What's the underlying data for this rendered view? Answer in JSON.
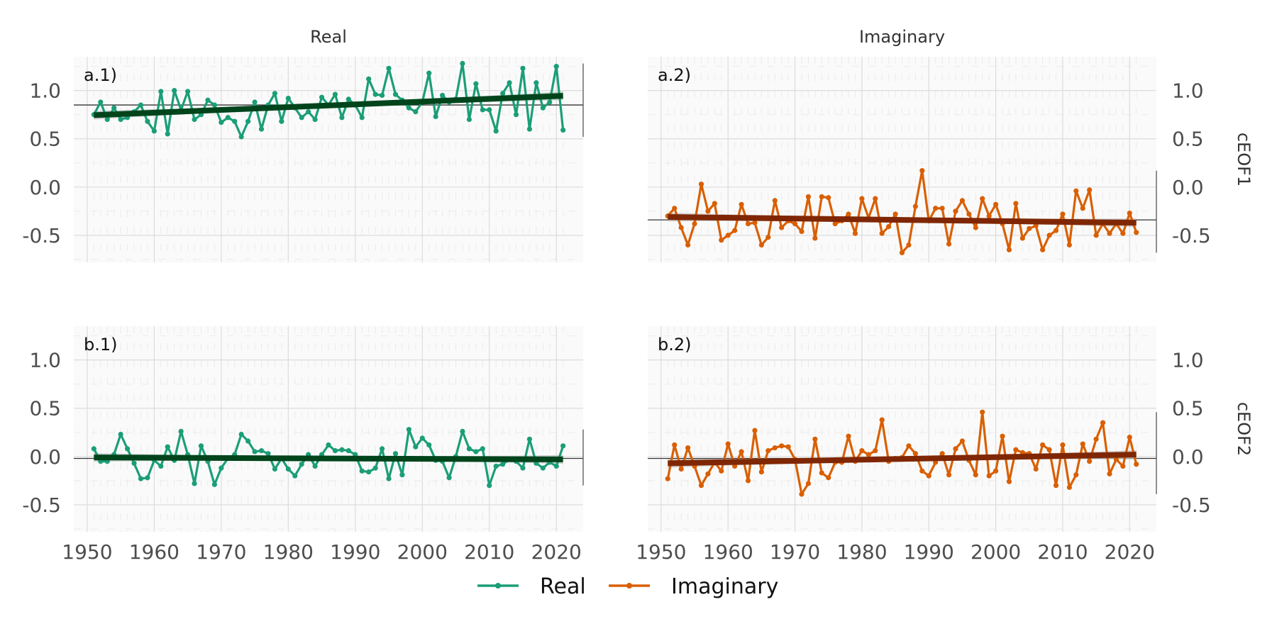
{
  "chart_data": {
    "type": "line",
    "x": [
      1951,
      1952,
      1953,
      1954,
      1955,
      1956,
      1957,
      1958,
      1959,
      1960,
      1961,
      1962,
      1963,
      1964,
      1965,
      1966,
      1967,
      1968,
      1969,
      1970,
      1971,
      1972,
      1973,
      1974,
      1975,
      1976,
      1977,
      1978,
      1979,
      1980,
      1981,
      1982,
      1983,
      1984,
      1985,
      1986,
      1987,
      1988,
      1989,
      1990,
      1991,
      1992,
      1993,
      1994,
      1995,
      1996,
      1997,
      1998,
      1999,
      2000,
      2001,
      2002,
      2003,
      2004,
      2005,
      2006,
      2007,
      2008,
      2009,
      2010,
      2011,
      2012,
      2013,
      2014,
      2015,
      2016,
      2017,
      2018,
      2019,
      2020,
      2021
    ],
    "column_titles": [
      "Real",
      "Imaginary"
    ],
    "row_titles": [
      "cEOF1",
      "cEOF2"
    ],
    "xlim": [
      1948,
      2024
    ],
    "ylim": [
      -0.78,
      1.35
    ],
    "x_ticks": [
      1950,
      1960,
      1970,
      1980,
      1990,
      2000,
      2010,
      2020
    ],
    "y_ticks": [
      1.0,
      0.5,
      0.0,
      -0.5
    ],
    "y_tick_labels": [
      "1.0",
      "0.5",
      "0.0",
      "-0.5"
    ],
    "x_tick_labels": [
      "1950",
      "1960",
      "1970",
      "1980",
      "1990",
      "2000",
      "2010",
      "2020"
    ],
    "grid": true,
    "legend_position": "bottom",
    "legend": [
      {
        "label": "Real",
        "color": "#1b9e77"
      },
      {
        "label": "Imaginary",
        "color": "#d95f02"
      }
    ],
    "colors": {
      "real_line": "#1b9e77",
      "real_trend": "#00441b",
      "imag_line": "#d95f02",
      "imag_trend": "#7f2704",
      "ribbon": "#bdbdbd",
      "panel_bg": "#fafafa",
      "grid_major": "#dcdcdc",
      "grid_minor": "#ebebeb",
      "text": "#333333",
      "hline": "#333333"
    },
    "panels": [
      {
        "tag": "a.1)",
        "column": "Real",
        "row": "cEOF1",
        "series": "Real",
        "mean": 0.85,
        "trend": [
          0.745,
          0.945
        ],
        "y": [
          0.75,
          0.88,
          0.7,
          0.82,
          0.7,
          0.72,
          0.78,
          0.85,
          0.68,
          0.58,
          0.99,
          0.55,
          1.0,
          0.8,
          0.99,
          0.7,
          0.75,
          0.9,
          0.85,
          0.67,
          0.72,
          0.68,
          0.52,
          0.68,
          0.88,
          0.6,
          0.85,
          0.97,
          0.68,
          0.92,
          0.82,
          0.72,
          0.78,
          0.7,
          0.93,
          0.85,
          0.96,
          0.72,
          0.91,
          0.85,
          0.72,
          1.12,
          0.96,
          0.95,
          1.23,
          0.96,
          0.9,
          0.82,
          0.78,
          0.88,
          1.18,
          0.73,
          0.95,
          0.88,
          0.91,
          1.28,
          0.7,
          1.07,
          0.8,
          0.8,
          0.58,
          0.97,
          1.08,
          0.75,
          1.23,
          0.6,
          1.08,
          0.82,
          0.88,
          1.25,
          0.59
        ]
      },
      {
        "tag": "a.2)",
        "column": "Imaginary",
        "row": "cEOF1",
        "series": "Imaginary",
        "mean": -0.34,
        "trend": [
          -0.31,
          -0.37
        ],
        "y": [
          -0.3,
          -0.22,
          -0.42,
          -0.6,
          -0.38,
          0.03,
          -0.25,
          -0.17,
          -0.55,
          -0.5,
          -0.45,
          -0.18,
          -0.38,
          -0.37,
          -0.6,
          -0.52,
          -0.14,
          -0.42,
          -0.35,
          -0.38,
          -0.46,
          -0.1,
          -0.53,
          -0.1,
          -0.11,
          -0.38,
          -0.35,
          -0.28,
          -0.48,
          -0.12,
          -0.32,
          -0.12,
          -0.48,
          -0.41,
          -0.28,
          -0.68,
          -0.6,
          -0.2,
          0.17,
          -0.35,
          -0.22,
          -0.22,
          -0.59,
          -0.25,
          -0.14,
          -0.28,
          -0.42,
          -0.12,
          -0.3,
          -0.18,
          -0.38,
          -0.65,
          -0.17,
          -0.53,
          -0.43,
          -0.4,
          -0.65,
          -0.5,
          -0.45,
          -0.28,
          -0.6,
          -0.04,
          -0.22,
          -0.03,
          -0.5,
          -0.38,
          -0.48,
          -0.38,
          -0.48,
          -0.27,
          -0.47
        ]
      },
      {
        "tag": "b.1)",
        "column": "Real",
        "row": "cEOF2",
        "series": "Real",
        "mean": -0.02,
        "trend": [
          -0.01,
          -0.03
        ],
        "y": [
          0.08,
          -0.05,
          -0.05,
          0.02,
          0.23,
          0.08,
          -0.07,
          -0.23,
          -0.22,
          -0.04,
          -0.1,
          0.1,
          -0.04,
          0.26,
          0.02,
          -0.28,
          0.11,
          -0.05,
          -0.29,
          -0.12,
          -0.02,
          0.02,
          0.23,
          0.16,
          0.05,
          0.06,
          0.03,
          -0.13,
          -0.02,
          -0.13,
          -0.2,
          -0.08,
          0.02,
          -0.1,
          0.02,
          0.12,
          0.06,
          0.07,
          0.06,
          0.02,
          -0.15,
          -0.16,
          -0.12,
          0.08,
          -0.23,
          0.03,
          -0.19,
          0.28,
          0.1,
          0.19,
          0.12,
          -0.04,
          -0.05,
          -0.22,
          0.0,
          0.26,
          0.08,
          0.05,
          0.08,
          -0.3,
          -0.1,
          -0.08,
          -0.03,
          -0.05,
          -0.12,
          0.18,
          -0.07,
          -0.12,
          -0.06,
          -0.1,
          0.11
        ]
      },
      {
        "tag": "b.2)",
        "column": "Imaginary",
        "row": "cEOF2",
        "series": "Imaginary",
        "mean": -0.02,
        "trend": [
          -0.07,
          0.02
        ],
        "y": [
          -0.23,
          0.12,
          -0.13,
          0.09,
          -0.1,
          -0.3,
          -0.18,
          -0.06,
          -0.15,
          0.13,
          -0.1,
          0.05,
          -0.25,
          0.27,
          -0.16,
          0.06,
          0.09,
          0.11,
          0.1,
          -0.03,
          -0.39,
          -0.28,
          0.18,
          -0.17,
          -0.22,
          -0.06,
          -0.06,
          0.21,
          -0.05,
          0.06,
          0.02,
          0.06,
          0.38,
          -0.05,
          -0.02,
          -0.01,
          0.11,
          0.03,
          -0.15,
          -0.2,
          -0.06,
          0.03,
          -0.19,
          0.08,
          0.16,
          -0.04,
          -0.19,
          0.46,
          -0.2,
          -0.15,
          0.21,
          -0.26,
          0.07,
          0.04,
          0.03,
          -0.13,
          0.12,
          0.07,
          -0.3,
          0.12,
          -0.32,
          -0.19,
          0.13,
          -0.05,
          0.18,
          0.35,
          -0.18,
          -0.03,
          -0.1,
          0.2,
          -0.08
        ]
      }
    ]
  }
}
